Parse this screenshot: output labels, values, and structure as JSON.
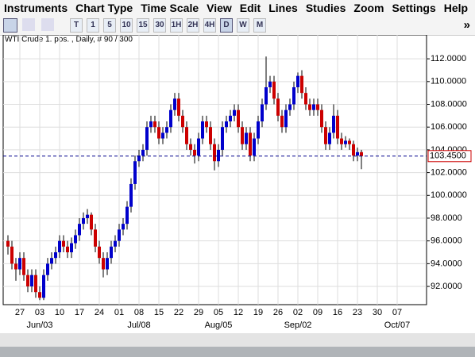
{
  "menu": [
    "Instruments",
    "Chart Type",
    "Time Scale",
    "View",
    "Edit",
    "Lines",
    "Studies",
    "Zoom",
    "Settings",
    "Help"
  ],
  "toolbar": {
    "buttons": [
      "T",
      "1",
      "5",
      "10",
      "15",
      "30",
      "1H",
      "2H",
      "4H",
      "D",
      "W",
      "M"
    ],
    "more": "»"
  },
  "chart_data": {
    "type": "candlestick",
    "title": "WTI Crude 1. pos. , Daily, # 90 / 300",
    "up_color": "#0000cc",
    "down_color": "#cc0000",
    "grid": true,
    "x_labels": [
      "27",
      "03",
      "10",
      "17",
      "24",
      "01",
      "08",
      "15",
      "22",
      "29",
      "05",
      "12",
      "19",
      "26",
      "02",
      "09",
      "16",
      "23",
      "30",
      "07"
    ],
    "x_month_labels": [
      null,
      "Jun/03",
      null,
      null,
      null,
      null,
      "Jul/08",
      null,
      null,
      null,
      "Aug/05",
      null,
      null,
      null,
      "Sep/02",
      null,
      null,
      null,
      null,
      "Oct/07"
    ],
    "ylim": [
      90.4,
      114.1
    ],
    "yticks": [
      {
        "value": 92,
        "label": "92.0000"
      },
      {
        "value": 94,
        "label": "94.0000"
      },
      {
        "value": 96,
        "label": "96.0000"
      },
      {
        "value": 98,
        "label": "98.0000"
      },
      {
        "value": 100,
        "label": "100.0000"
      },
      {
        "value": 102,
        "label": "102.0000"
      },
      {
        "value": 104,
        "label": "104.0000"
      },
      {
        "value": 106,
        "label": "106.0000"
      },
      {
        "value": 108,
        "label": "108.0000"
      },
      {
        "value": 110,
        "label": "110.0000"
      },
      {
        "value": 112,
        "label": "112.0000"
      }
    ],
    "last_price": 103.45,
    "last_price_label": "103.4500",
    "ohlc": [
      [
        96,
        96.5,
        94.8,
        95.5
      ],
      [
        95.5,
        96,
        93.5,
        94
      ],
      [
        94,
        94.5,
        92.5,
        93.5
      ],
      [
        93.5,
        95,
        93,
        94.5
      ],
      [
        94.5,
        95,
        92.5,
        93
      ],
      [
        93,
        93.5,
        91.5,
        92
      ],
      [
        92,
        93.5,
        91.5,
        93
      ],
      [
        93,
        93.5,
        91,
        91.5
      ],
      [
        91.5,
        92,
        90.8,
        91
      ],
      [
        91,
        93.5,
        90.8,
        93
      ],
      [
        93,
        94.5,
        92.5,
        94
      ],
      [
        94,
        95,
        93.5,
        94.5
      ],
      [
        94.5,
        95.5,
        94,
        95
      ],
      [
        95,
        96.5,
        94.5,
        96
      ],
      [
        96,
        96.5,
        95,
        95.5
      ],
      [
        95.5,
        96,
        94.5,
        95
      ],
      [
        95,
        96.3,
        94.5,
        95.8
      ],
      [
        95.8,
        97,
        95.3,
        96.5
      ],
      [
        96.5,
        98,
        96,
        97.5
      ],
      [
        97.5,
        98.5,
        97,
        98
      ],
      [
        98,
        98.8,
        97.5,
        98.3
      ],
      [
        98.3,
        98.5,
        96.5,
        97
      ],
      [
        97,
        97.5,
        95,
        95.5
      ],
      [
        95.5,
        96,
        94,
        94.5
      ],
      [
        94.5,
        95,
        92.8,
        93.5
      ],
      [
        93.5,
        95,
        93,
        94.5
      ],
      [
        94.5,
        96,
        94,
        95.5
      ],
      [
        95.5,
        96.5,
        95,
        96
      ],
      [
        96,
        97.5,
        95.5,
        97
      ],
      [
        97,
        98,
        96.5,
        97.5
      ],
      [
        97.5,
        99.5,
        97,
        99
      ],
      [
        99,
        101.5,
        98.5,
        101
      ],
      [
        101,
        103.5,
        100.5,
        103
      ],
      [
        103,
        104,
        102.5,
        103.5
      ],
      [
        103.5,
        104.5,
        103,
        104
      ],
      [
        104,
        106.5,
        103.5,
        106
      ],
      [
        106,
        107,
        105.5,
        106.5
      ],
      [
        106.5,
        107,
        105.5,
        106
      ],
      [
        106,
        106.5,
        104.5,
        105
      ],
      [
        105,
        106,
        104.5,
        105.5
      ],
      [
        105.5,
        106.5,
        105,
        106
      ],
      [
        106,
        108,
        105.5,
        107.5
      ],
      [
        107.5,
        109,
        107,
        108.5
      ],
      [
        108.5,
        109,
        106.5,
        107
      ],
      [
        107,
        107.5,
        105.5,
        106
      ],
      [
        106,
        106.5,
        104,
        104.5
      ],
      [
        104.5,
        105,
        103.5,
        104
      ],
      [
        104,
        104.5,
        102.8,
        103.5
      ],
      [
        103.5,
        105.5,
        103,
        105
      ],
      [
        105,
        107,
        104.5,
        106.5
      ],
      [
        106.5,
        107,
        105.5,
        106
      ],
      [
        106,
        106.5,
        104,
        104.5
      ],
      [
        104.5,
        105,
        102.2,
        103
      ],
      [
        103,
        104.5,
        102.5,
        104
      ],
      [
        104,
        106.5,
        103.5,
        106
      ],
      [
        106,
        107,
        105.5,
        106.5
      ],
      [
        106.5,
        107.5,
        106,
        107
      ],
      [
        107,
        108,
        106.5,
        107.5
      ],
      [
        107.5,
        108,
        105.5,
        106
      ],
      [
        106,
        106.5,
        104,
        104.5
      ],
      [
        104.5,
        106,
        104,
        105.5
      ],
      [
        105.5,
        106,
        103,
        103.5
      ],
      [
        103.5,
        105.5,
        103,
        105
      ],
      [
        105,
        107,
        104.5,
        106.5
      ],
      [
        106.5,
        108.5,
        106,
        108
      ],
      [
        108,
        112.2,
        107.5,
        109.5
      ],
      [
        109.5,
        110.5,
        109,
        110
      ],
      [
        110,
        110.5,
        108,
        108.5
      ],
      [
        108.5,
        109,
        106.5,
        107
      ],
      [
        107,
        107.5,
        105.5,
        106
      ],
      [
        106,
        108,
        105.5,
        107.5
      ],
      [
        107.5,
        108.5,
        107,
        108
      ],
      [
        108,
        110,
        107.5,
        109.5
      ],
      [
        109.5,
        110.8,
        109,
        110.5
      ],
      [
        110.5,
        111,
        108.5,
        109
      ],
      [
        109,
        109.5,
        107.5,
        108
      ],
      [
        108,
        108.5,
        107,
        107.5
      ],
      [
        107.5,
        108.5,
        107,
        108
      ],
      [
        108,
        108.5,
        107,
        107.5
      ],
      [
        107.5,
        108,
        105.5,
        106
      ],
      [
        106,
        106.5,
        104,
        104.5
      ],
      [
        104.5,
        106,
        104,
        105.5
      ],
      [
        105.5,
        108,
        105,
        107
      ],
      [
        107,
        107.5,
        104.5,
        105
      ],
      [
        105,
        105.5,
        104,
        104.5
      ],
      [
        104.5,
        105.2,
        104.2,
        104.8
      ],
      [
        104.8,
        105,
        104,
        104.5
      ],
      [
        104.5,
        104.8,
        103,
        103.5
      ],
      [
        103.5,
        104.2,
        103,
        103.8
      ],
      [
        103.8,
        104,
        102.3,
        103.45
      ]
    ]
  }
}
